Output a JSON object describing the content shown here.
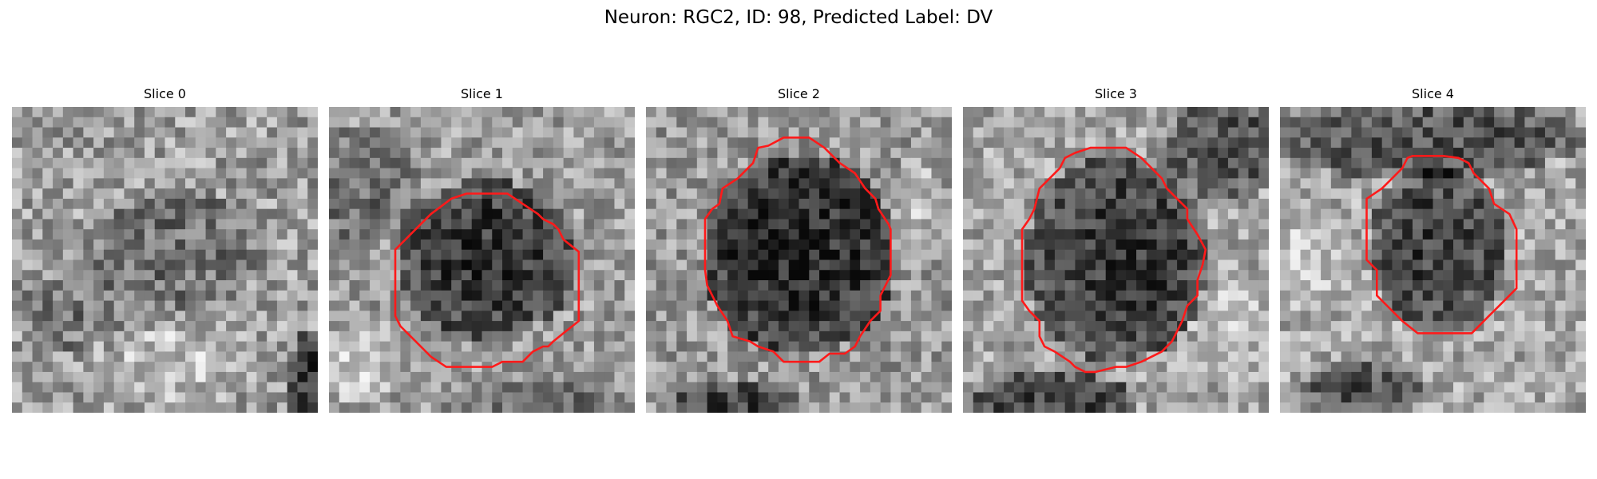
{
  "figure": {
    "title": "Neuron: RGC2, ID: 98, Predicted Label: DV"
  },
  "colors": {
    "background": "#ffffff",
    "contour": "#ff1a1a",
    "grayscale_dark": "#0a0a0a",
    "grayscale_light": "#f2f2f2"
  },
  "panels": [
    {
      "title": "Slice 0",
      "has_contour": false
    },
    {
      "title": "Slice 1",
      "has_contour": true
    },
    {
      "title": "Slice 2",
      "has_contour": true
    },
    {
      "title": "Slice 3",
      "has_contour": true
    },
    {
      "title": "Slice 4",
      "has_contour": true
    }
  ]
}
